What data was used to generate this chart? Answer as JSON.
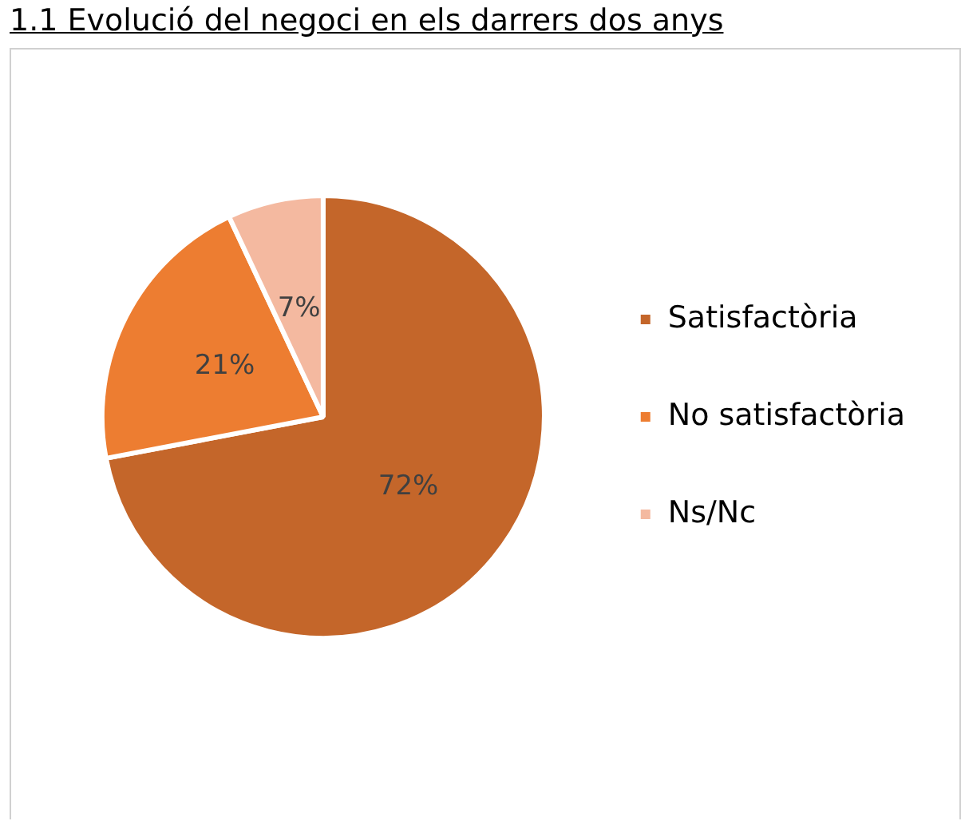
{
  "chart_data": {
    "type": "pie",
    "title": "1.1 Evolució del negoci en els darrers dos anys",
    "categories": [
      "Satisfactòria",
      "No satisfactòria",
      "Ns/Nc"
    ],
    "values": [
      72,
      21,
      7
    ],
    "colors": [
      "#c4662a",
      "#ed7d31",
      "#f4b9a0"
    ],
    "value_labels": [
      "72%",
      "21%",
      "7%"
    ],
    "legend": "right"
  }
}
